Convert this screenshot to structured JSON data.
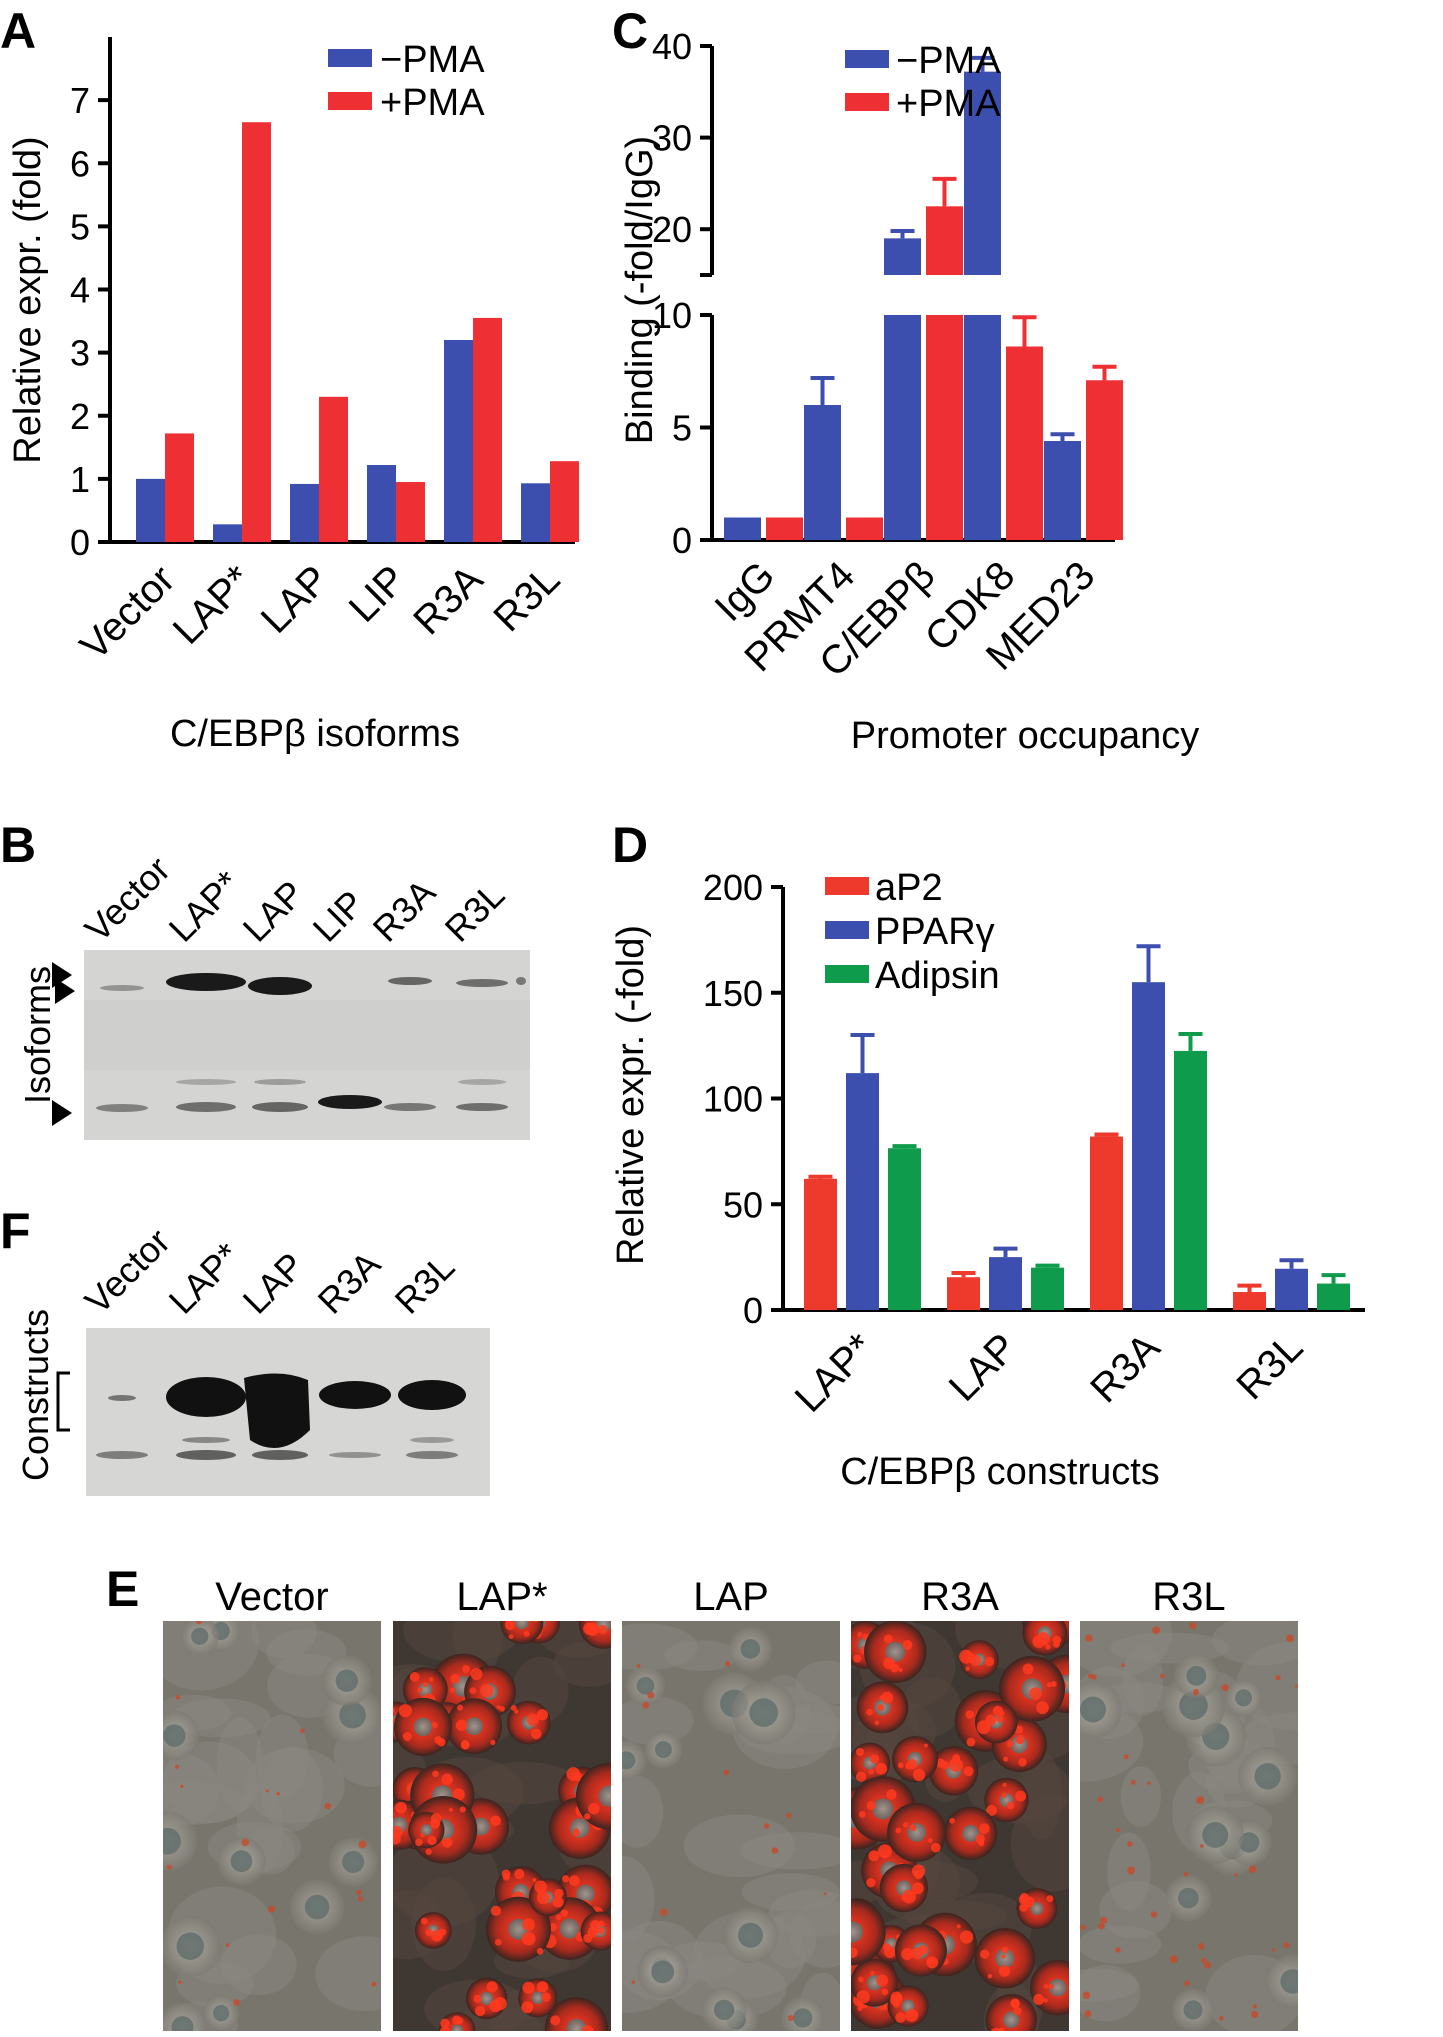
{
  "colors": {
    "minus_pma": "#3d4fae",
    "plus_pma": "#ee2f33",
    "ap2": "#ee3a2d",
    "ppar": "#3d4fae",
    "adipsin": "#0e9c4c",
    "blot_bg": "#dcdcdc",
    "band": "#111111"
  },
  "panels": {
    "A": {
      "letter": "A"
    },
    "B": {
      "letter": "B",
      "side_label": "Isoforms",
      "lanes": [
        "Vector",
        "LAP*",
        "LAP",
        "LIP",
        "R3A",
        "R3L"
      ]
    },
    "C": {
      "letter": "C"
    },
    "D": {
      "letter": "D"
    },
    "E": {
      "letter": "E",
      "labels": [
        "Vector",
        "LAP*",
        "LAP",
        "R3A",
        "R3L"
      ]
    },
    "F": {
      "letter": "F",
      "side_label": "Constructs",
      "lanes": [
        "Vector",
        "LAP*",
        "LAP",
        "R3A",
        "R3L"
      ]
    }
  },
  "chart_data": [
    {
      "id": "A",
      "type": "bar",
      "categories": [
        "Vector",
        "LAP*",
        "LAP",
        "LIP",
        "R3A",
        "R3L"
      ],
      "series": [
        {
          "name": "−PMA",
          "values": [
            1.0,
            0.28,
            0.92,
            1.22,
            3.2,
            0.93
          ]
        },
        {
          "name": "+PMA",
          "values": [
            1.72,
            6.65,
            2.3,
            0.95,
            3.55,
            1.28
          ]
        }
      ],
      "xlabel": "C/EBPβ isoforms",
      "ylabel": "Relative expr. (fold)",
      "ylim": [
        0,
        8
      ],
      "yticks": [
        "0",
        "1",
        "2",
        "3",
        "4",
        "5",
        "6",
        "7"
      ],
      "legend": "top-right"
    },
    {
      "id": "C",
      "type": "bar",
      "categories": [
        "IgG",
        "PRMT4",
        "C/EBPβ",
        "CDK8",
        "MED23"
      ],
      "series": [
        {
          "name": "−PMA",
          "values": [
            1.0,
            6.0,
            19.0,
            37.2,
            4.4
          ],
          "errors": [
            0,
            1.2,
            0.8,
            1.5,
            0.3
          ]
        },
        {
          "name": "+PMA",
          "values": [
            1.0,
            1.0,
            22.5,
            8.6,
            7.1
          ],
          "errors": [
            0,
            0,
            3.0,
            1.3,
            0.6
          ]
        }
      ],
      "xlabel": "Promoter occupancy",
      "ylabel": "Binding (-fold/IgG)",
      "yticks_lower": [
        "0",
        "5",
        "10"
      ],
      "yticks_upper": [
        "20",
        "30",
        "40"
      ],
      "axis_break": [
        10,
        15
      ],
      "legend": "top-left"
    },
    {
      "id": "D",
      "type": "bar",
      "categories": [
        "LAP*",
        "LAP",
        "R3A",
        "R3L"
      ],
      "series": [
        {
          "name": "aP2",
          "values": [
            62,
            15.5,
            82,
            8.5
          ],
          "errors": [
            1,
            2,
            1,
            3
          ]
        },
        {
          "name": "PPARγ",
          "values": [
            112,
            25,
            155,
            19.5
          ],
          "errors": [
            18,
            4,
            17,
            4
          ]
        },
        {
          "name": "Adipsin",
          "values": [
            76.5,
            20,
            122.5,
            12.5
          ],
          "errors": [
            1,
            1,
            8,
            4
          ]
        }
      ],
      "xlabel": "C/EBPβ constructs",
      "ylabel": "Relative expr. (-fold)",
      "ylim": [
        0,
        200
      ],
      "yticks": [
        "0",
        "50",
        "100",
        "150",
        "200"
      ],
      "legend": "top-left"
    }
  ]
}
